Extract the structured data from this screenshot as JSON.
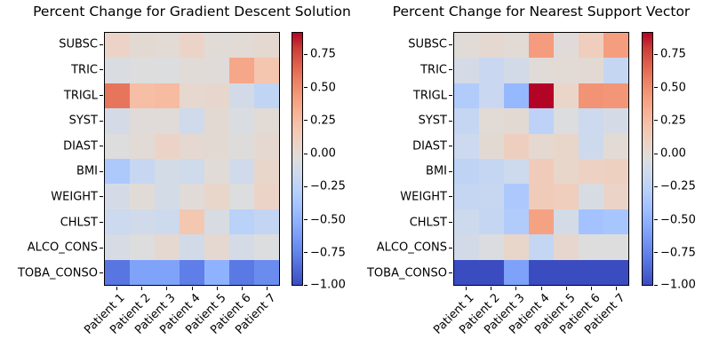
{
  "figure": {
    "background": "#ffffff"
  },
  "colormap": {
    "name": "coolwarm",
    "stops": [
      "#3b4cc0",
      "#4d68d7",
      "#6282ea",
      "#779af7",
      "#8db0fe",
      "#a3c2ff",
      "#b8d0f9",
      "#ccd9ee",
      "#dddddd",
      "#ecd3c5",
      "#f5c4ad",
      "#f7b194",
      "#f49a7b",
      "#ec7f63",
      "#de604d",
      "#cb3e38",
      "#b40426"
    ]
  },
  "colorbar": {
    "vmin": -1.0,
    "vmax": 0.92,
    "ticks": [
      {
        "label": "0.75",
        "value": 0.75
      },
      {
        "label": "0.50",
        "value": 0.5
      },
      {
        "label": "0.25",
        "value": 0.25
      },
      {
        "label": "0.00",
        "value": 0.0
      },
      {
        "label": "−0.25",
        "value": -0.25
      },
      {
        "label": "−0.50",
        "value": -0.5
      },
      {
        "label": "−0.75",
        "value": -0.75
      },
      {
        "label": "−1.00",
        "value": -1.0
      }
    ]
  },
  "chart_data": [
    {
      "type": "heatmap",
      "title": "Percent Change for Gradient Descent Solution",
      "rows": [
        "SUBSC",
        "TRIC",
        "TRIGL",
        "SYST",
        "DIAST",
        "BMI",
        "WEIGHT",
        "CHLST",
        "ALCO_CONS",
        "TOBA_CONSO"
      ],
      "columns": [
        "Patient 1",
        "Patient 2",
        "Patient 3",
        "Patient 4",
        "Patient 5",
        "Patient 6",
        "Patient 7"
      ],
      "values": [
        [
          0.07,
          0.01,
          0.0,
          0.07,
          -0.01,
          0.0,
          0.02
        ],
        [
          -0.07,
          -0.04,
          -0.05,
          -0.01,
          -0.02,
          0.37,
          0.19
        ],
        [
          0.6,
          0.24,
          0.26,
          0.03,
          0.04,
          -0.12,
          -0.23
        ],
        [
          -0.1,
          -0.02,
          -0.02,
          -0.14,
          0.01,
          -0.07,
          0.0
        ],
        [
          -0.04,
          0.0,
          0.07,
          0.02,
          0.01,
          -0.03,
          0.02
        ],
        [
          -0.34,
          -0.19,
          -0.11,
          -0.14,
          -0.01,
          -0.13,
          0.05
        ],
        [
          -0.1,
          -0.01,
          -0.11,
          -0.02,
          0.05,
          -0.05,
          0.07
        ],
        [
          -0.16,
          -0.13,
          -0.15,
          0.18,
          -0.08,
          -0.27,
          -0.21
        ],
        [
          -0.09,
          -0.04,
          0.02,
          -0.12,
          0.02,
          -0.1,
          -0.05
        ],
        [
          -0.82,
          -0.59,
          -0.59,
          -0.78,
          -0.51,
          -0.8,
          -0.71
        ]
      ]
    },
    {
      "type": "heatmap",
      "title": "Percent Change for Nearest Support Vector",
      "rows": [
        "SUBSC",
        "TRIC",
        "TRIGL",
        "SYST",
        "DIAST",
        "BMI",
        "WEIGHT",
        "CHLST",
        "ALCO_CONS",
        "TOBA_CONSO"
      ],
      "columns": [
        "Patient 1",
        "Patient 2",
        "Patient 3",
        "Patient 4",
        "Patient 5",
        "Patient 6",
        "Patient 7"
      ],
      "values": [
        [
          -0.01,
          0.02,
          0.0,
          0.43,
          -0.02,
          0.12,
          0.42
        ],
        [
          -0.1,
          -0.18,
          -0.12,
          -0.01,
          0.0,
          0.01,
          -0.2
        ],
        [
          -0.32,
          -0.18,
          -0.47,
          0.92,
          0.06,
          0.47,
          0.46
        ],
        [
          -0.2,
          0.0,
          0.01,
          -0.25,
          -0.05,
          -0.16,
          -0.1
        ],
        [
          -0.16,
          0.01,
          0.11,
          0.02,
          0.05,
          -0.15,
          0.0
        ],
        [
          -0.24,
          -0.2,
          -0.15,
          0.14,
          0.05,
          0.09,
          0.1
        ],
        [
          -0.2,
          -0.19,
          -0.35,
          0.14,
          0.12,
          -0.08,
          0.07
        ],
        [
          -0.15,
          -0.2,
          -0.32,
          0.4,
          -0.11,
          -0.4,
          -0.37
        ],
        [
          -0.12,
          -0.06,
          0.05,
          -0.2,
          0.04,
          -0.04,
          -0.04
        ],
        [
          -1.0,
          -1.0,
          -0.6,
          -1.0,
          -1.0,
          -1.0,
          -1.0
        ]
      ]
    }
  ]
}
